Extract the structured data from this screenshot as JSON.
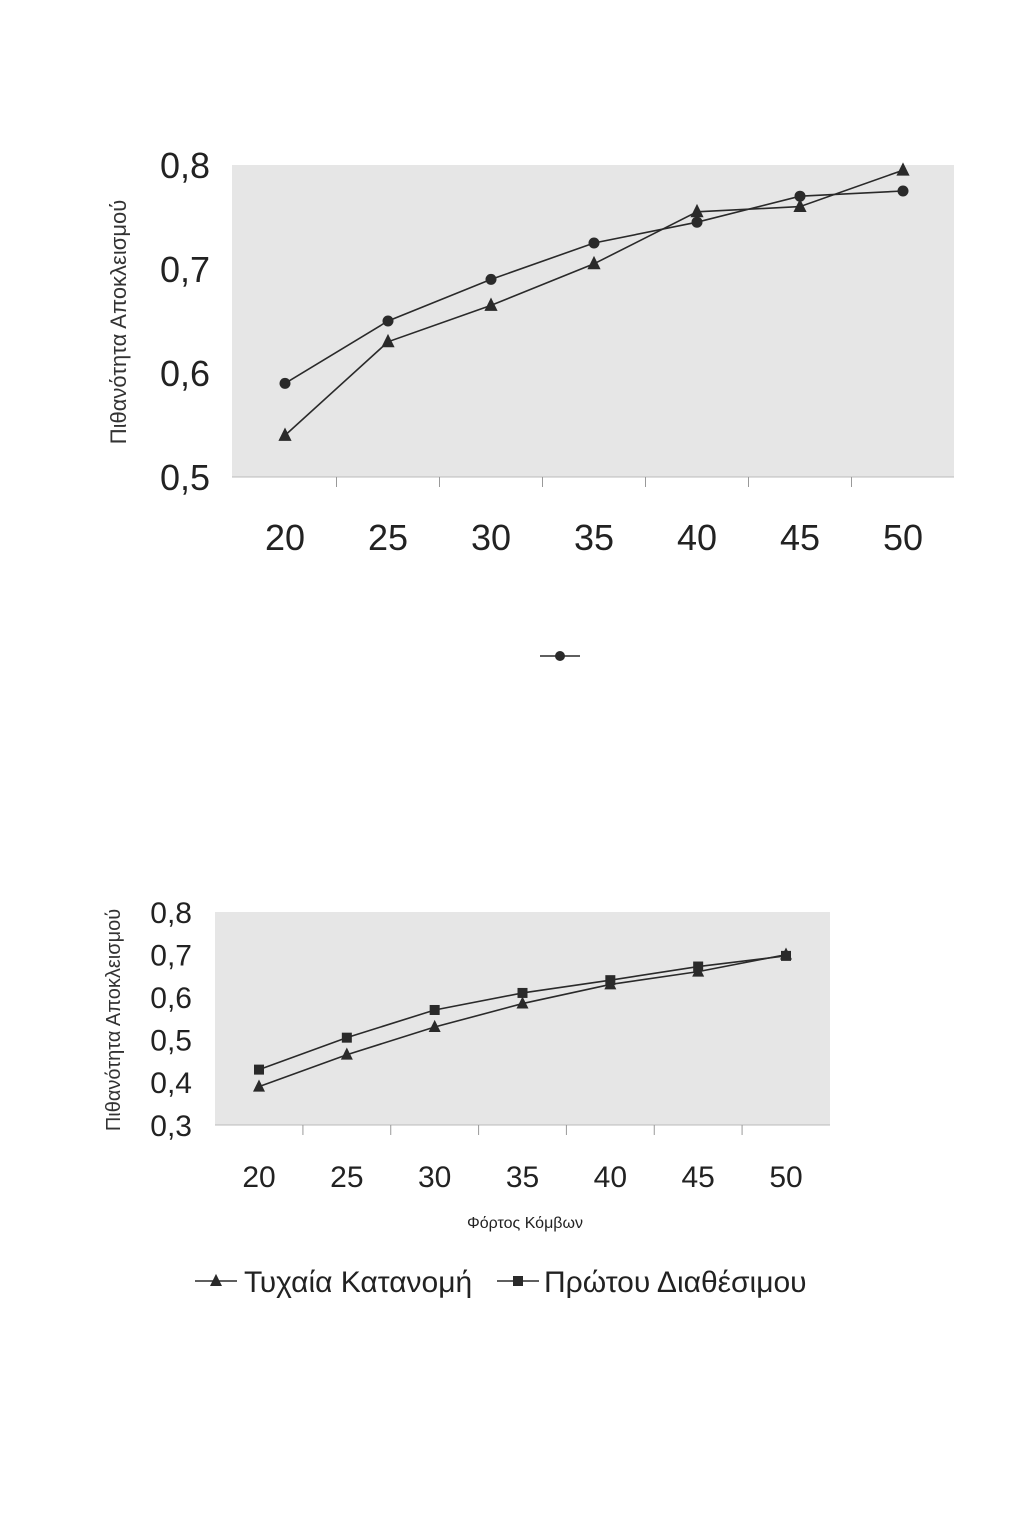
{
  "chart_data": [
    {
      "type": "line",
      "title": "",
      "xlabel": "",
      "ylabel": "Πιθανότητα Αποκλεισμού",
      "x": [
        20,
        25,
        30,
        35,
        40,
        45,
        50
      ],
      "x_tick_labels": [
        "20",
        "25",
        "30",
        "35",
        "40",
        "45",
        "50"
      ],
      "y_tick_labels": [
        "0,8",
        "0,7",
        "0,6",
        "0,5"
      ],
      "ylim": [
        0.5,
        0.8
      ],
      "grid": false,
      "series": [
        {
          "marker": "triangle",
          "values": [
            0.54,
            0.63,
            0.665,
            0.705,
            0.755,
            0.76,
            0.795
          ]
        },
        {
          "marker": "circle",
          "values": [
            0.59,
            0.65,
            0.69,
            0.725,
            0.745,
            0.77,
            0.775
          ]
        }
      ],
      "legend": {
        "placement": "bottom-center",
        "entries": [
          {
            "marker": "circle",
            "label": ""
          }
        ]
      }
    },
    {
      "type": "line",
      "title": "",
      "xlabel": "Φόρτος Κόμβων",
      "ylabel": "Πιθανότητα Αποκλεισμού",
      "x": [
        20,
        25,
        30,
        35,
        40,
        45,
        50
      ],
      "x_tick_labels": [
        "20",
        "25",
        "30",
        "35",
        "40",
        "45",
        "50"
      ],
      "y_tick_labels": [
        "0,8",
        "0,7",
        "0,6",
        "0,5",
        "0,4",
        "0,3"
      ],
      "ylim": [
        0.3,
        0.8
      ],
      "grid": false,
      "series": [
        {
          "name": "Τυχαία Κατανομή",
          "marker": "triangle",
          "values": [
            0.39,
            0.465,
            0.53,
            0.585,
            0.63,
            0.66,
            0.7
          ]
        },
        {
          "name": "Πρώτου Διαθέσιμου",
          "marker": "square",
          "values": [
            0.43,
            0.505,
            0.57,
            0.61,
            0.64,
            0.672,
            0.697
          ]
        }
      ],
      "legend": {
        "placement": "bottom-center"
      }
    }
  ],
  "colors": {
    "plot_bg": "#e6e6e6",
    "line": "#2a2a2a",
    "text": "#222222"
  }
}
